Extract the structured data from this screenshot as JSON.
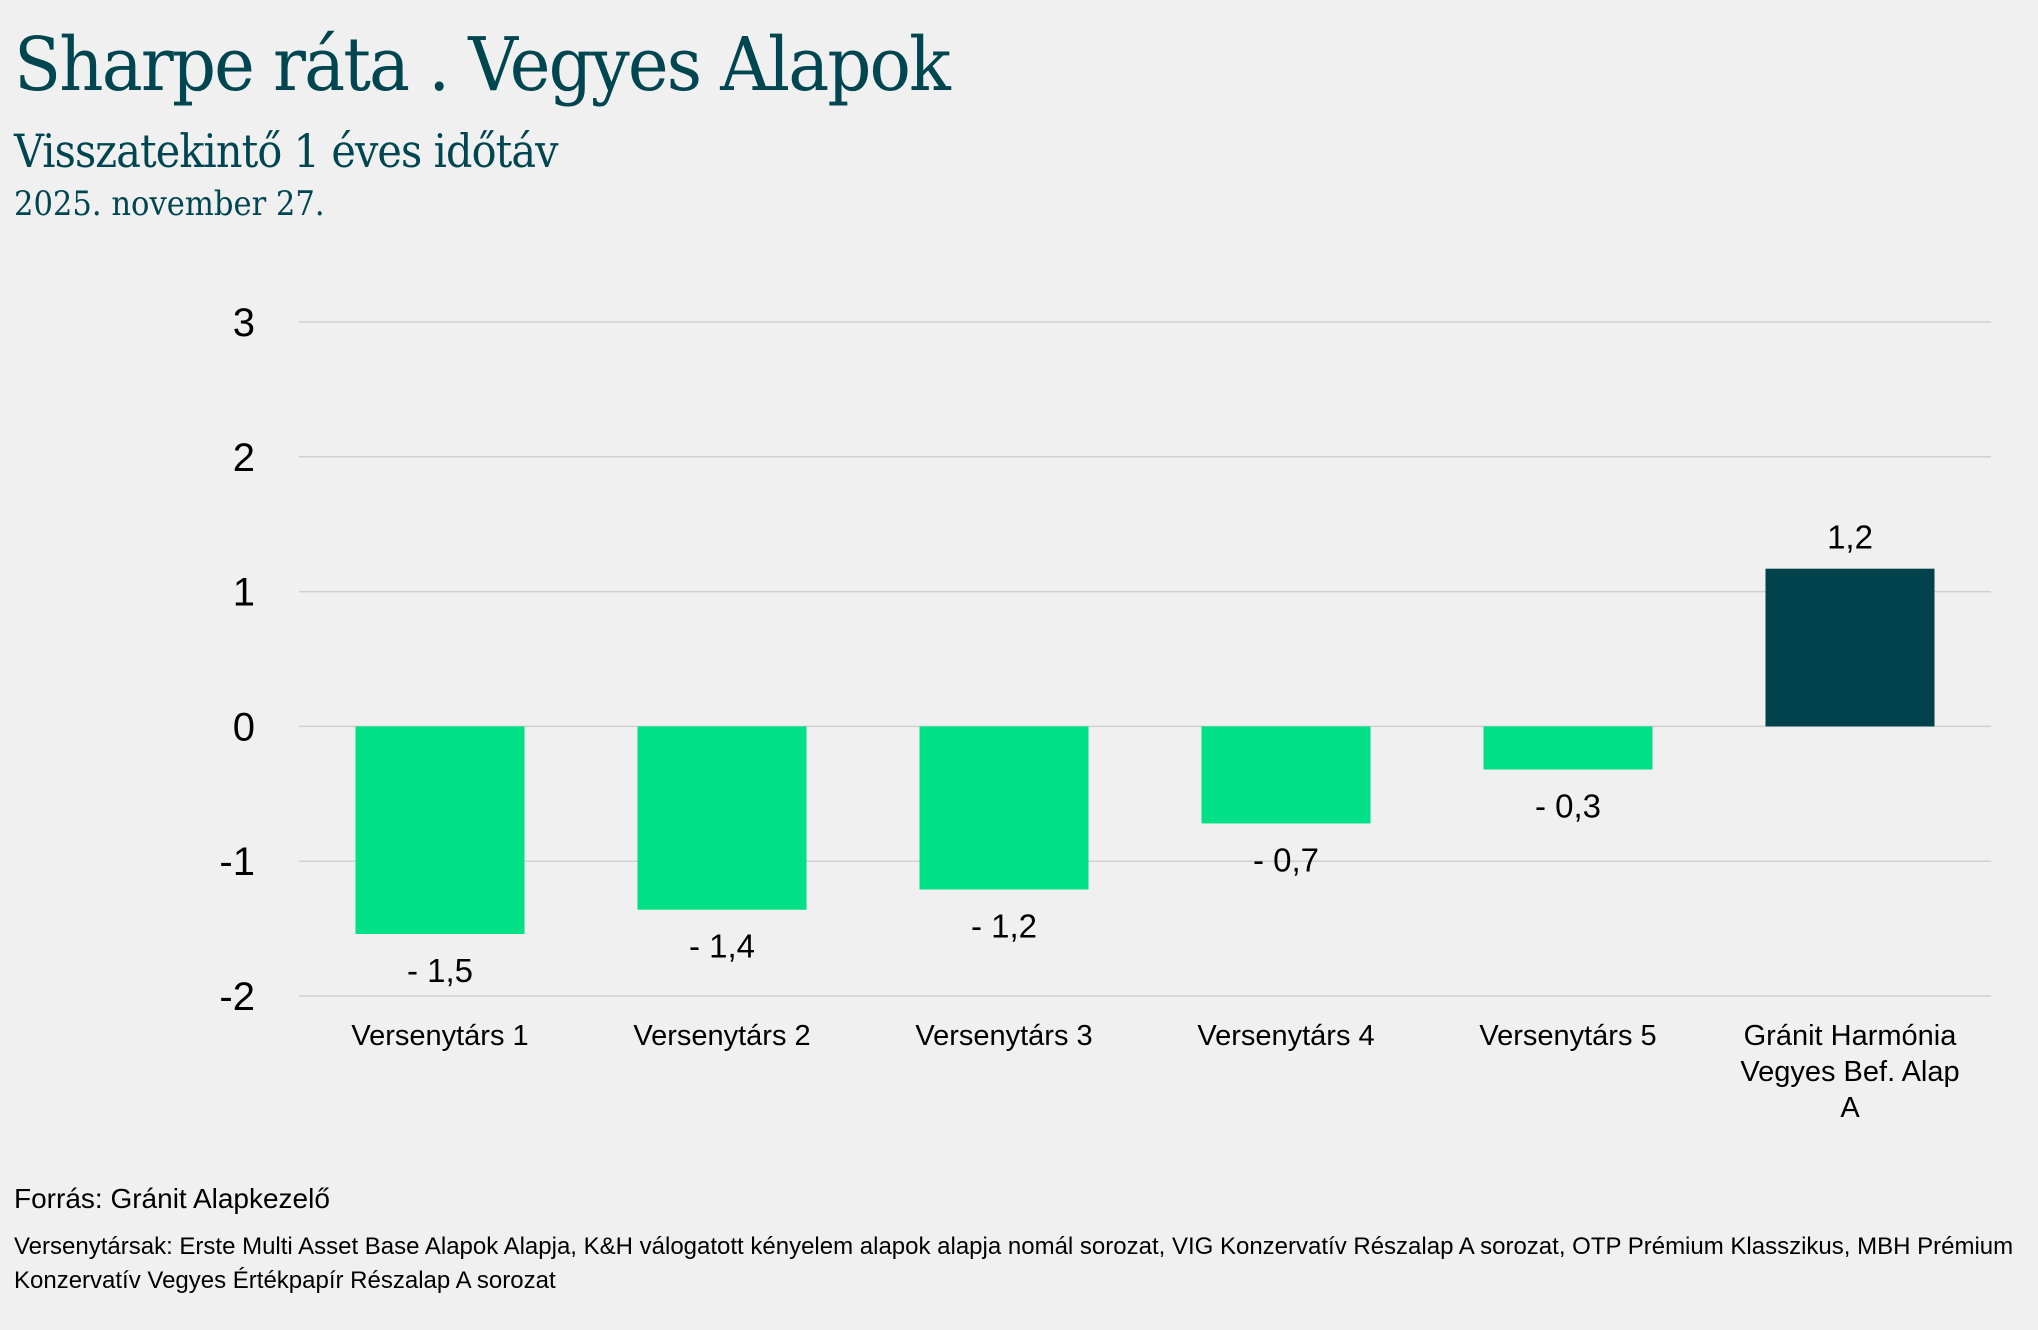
{
  "header": {
    "title": "Sharpe ráta . Vegyes Alapok",
    "subtitle": "Visszatekintő 1 éves időtáv",
    "date": "2025. november 27."
  },
  "chart_data": {
    "type": "bar",
    "title": "Sharpe ráta . Vegyes Alapok",
    "categories": [
      "Versenytárs 1",
      "Versenytárs 2",
      "Versenytárs 3",
      "Versenytárs 4",
      "Versenytárs 5",
      "Gránit Harmónia Vegyes Bef. Alap A"
    ],
    "category_lines": [
      [
        "Versenytárs 1"
      ],
      [
        "Versenytárs 2"
      ],
      [
        "Versenytárs 3"
      ],
      [
        "Versenytárs 4"
      ],
      [
        "Versenytárs 5"
      ],
      [
        "Gránit Harmónia",
        "Vegyes Bef. Alap",
        "A"
      ]
    ],
    "values": [
      -1.54,
      -1.36,
      -1.21,
      -0.72,
      -0.32,
      1.17
    ],
    "data_labels": [
      "- 1,5",
      "- 1,4",
      "- 1,2",
      "- 0,7",
      "- 0,3",
      "1,2"
    ],
    "colors": [
      "#00e187",
      "#00e187",
      "#00e187",
      "#00e187",
      "#00e187",
      "#00424c"
    ],
    "yticks": [
      3,
      2,
      1,
      0,
      -1,
      -2
    ],
    "ylim": [
      -2,
      3
    ],
    "xlabel": "",
    "ylabel": "",
    "grid": true,
    "legend": "none"
  },
  "footer": {
    "source": "Forrás: Gránit Alapkezelő",
    "note": "Versenytársak: Erste Multi Asset Base Alapok Alapja, K&H válogatott kényelem alapok alapja nomál sorozat, VIG Konzervatív Részalap A sorozat, OTP Prémium Klasszikus, MBH Prémium Konzervatív Vegyes Értékpapír Részalap A sorozat"
  }
}
